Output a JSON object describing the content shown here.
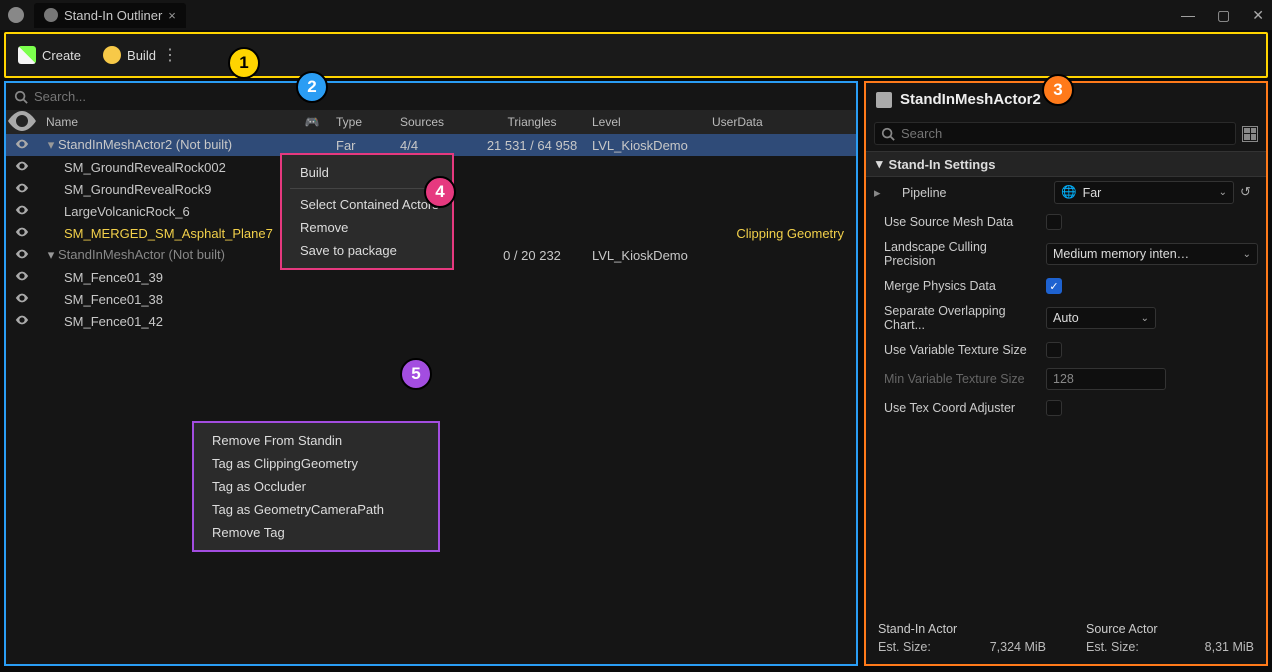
{
  "titlebar": {
    "tab_title": "Stand-In Outliner"
  },
  "toolbar": {
    "create": "Create",
    "build": "Build"
  },
  "callouts": {
    "b1": "1",
    "b2": "2",
    "b3": "3",
    "b4": "4",
    "b5": "5"
  },
  "outliner": {
    "search_placeholder": "Search...",
    "columns": {
      "name": "Name",
      "type": "Type",
      "sources": "Sources",
      "triangles": "Triangles",
      "level": "Level",
      "userdata": "UserData"
    },
    "rows": [
      {
        "indent": 0,
        "caret": true,
        "name": "StandInMeshActor2 (Not built)",
        "type": "Far",
        "sources": "4/4",
        "tri": "21 531 / 64 958",
        "level": "LVL_KioskDemo",
        "ud": "",
        "sel": true
      },
      {
        "indent": 1,
        "name": "SM_GroundRevealRock002"
      },
      {
        "indent": 1,
        "name": "SM_GroundRevealRock9"
      },
      {
        "indent": 1,
        "name": "LargeVolcanicRock_6"
      },
      {
        "indent": 1,
        "name": "SM_MERGED_SM_Asphalt_Plane7",
        "yellow": true,
        "ud": "Clipping Geometry"
      },
      {
        "indent": 0,
        "caret": true,
        "name": "StandInMeshActor (Not built)",
        "dim": true,
        "type": "",
        "sources": "",
        "tri": "0 / 20 232",
        "level": "LVL_KioskDemo"
      },
      {
        "indent": 1,
        "name": "SM_Fence01_39"
      },
      {
        "indent": 1,
        "name": "SM_Fence01_38"
      },
      {
        "indent": 1,
        "name": "SM_Fence01_42"
      }
    ]
  },
  "ctx1": {
    "items": [
      "Build",
      "—",
      "Select Contained Actors",
      "Remove",
      "Save to package"
    ]
  },
  "ctx2": {
    "items": [
      "Remove From Standin",
      "Tag as ClippingGeometry",
      "Tag as Occluder",
      "Tag as GeometryCameraPath",
      "Remove Tag"
    ]
  },
  "details": {
    "title": "StandInMeshActor2",
    "search_placeholder": "Search",
    "section": "Stand-In Settings",
    "props": {
      "pipeline": {
        "label": "Pipeline",
        "value": "Far"
      },
      "use_source": {
        "label": "Use Source Mesh Data",
        "checked": false
      },
      "landscape": {
        "label": "Landscape Culling Precision",
        "value": "Medium memory intensity a"
      },
      "merge_phys": {
        "label": "Merge Physics Data",
        "checked": true
      },
      "sep_charts": {
        "label": "Separate Overlapping Chart...",
        "value": "Auto"
      },
      "use_var": {
        "label": "Use Variable Texture Size",
        "checked": false
      },
      "min_var": {
        "label": "Min Variable Texture Size",
        "value": "128"
      },
      "use_tex": {
        "label": "Use Tex Coord Adjuster",
        "checked": false
      }
    },
    "footer": {
      "left_h": "Stand-In Actor",
      "left_l": "Est. Size:",
      "left_v": "7,324 MiB",
      "right_h": "Source Actor",
      "right_l": "Est. Size:",
      "right_v": "8,31 MiB"
    }
  }
}
